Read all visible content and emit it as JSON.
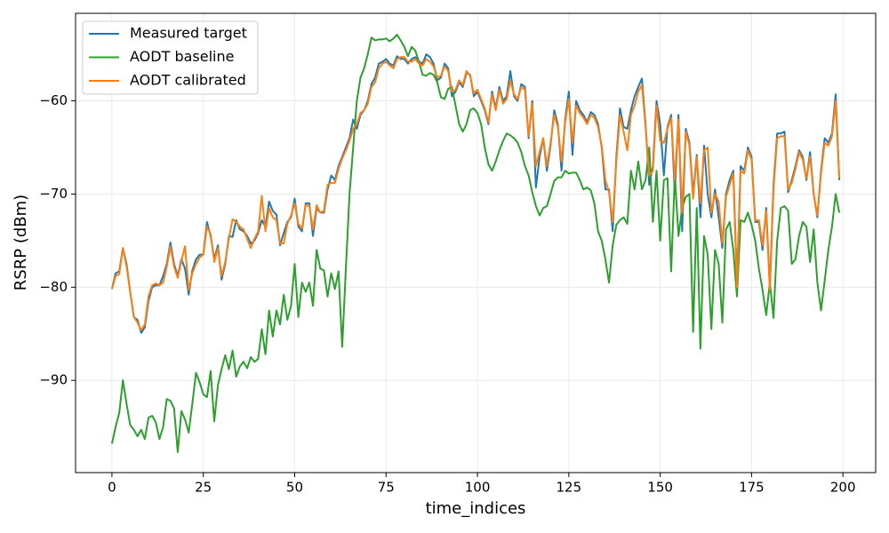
{
  "chart_data": {
    "type": "line",
    "xlabel": "time_indices",
    "ylabel": "RSRP (dBm)",
    "x": [
      0,
      1,
      2,
      3,
      4,
      5,
      6,
      7,
      8,
      9,
      10,
      11,
      12,
      13,
      14,
      15,
      16,
      17,
      18,
      19,
      20,
      21,
      22,
      23,
      24,
      25,
      26,
      27,
      28,
      29,
      30,
      31,
      32,
      33,
      34,
      35,
      36,
      37,
      38,
      39,
      40,
      41,
      42,
      43,
      44,
      45,
      46,
      47,
      48,
      49,
      50,
      51,
      52,
      53,
      54,
      55,
      56,
      57,
      58,
      59,
      60,
      61,
      62,
      63,
      64,
      65,
      66,
      67,
      68,
      69,
      70,
      71,
      72,
      73,
      74,
      75,
      76,
      77,
      78,
      79,
      80,
      81,
      82,
      83,
      84,
      85,
      86,
      87,
      88,
      89,
      90,
      91,
      92,
      93,
      94,
      95,
      96,
      97,
      98,
      99,
      100,
      101,
      102,
      103,
      104,
      105,
      106,
      107,
      108,
      109,
      110,
      111,
      112,
      113,
      114,
      115,
      116,
      117,
      118,
      119,
      120,
      121,
      122,
      123,
      124,
      125,
      126,
      127,
      128,
      129,
      130,
      131,
      132,
      133,
      134,
      135,
      136,
      137,
      138,
      139,
      140,
      141,
      142,
      143,
      144,
      145,
      146,
      147,
      148,
      149,
      150,
      151,
      152,
      153,
      154,
      155,
      156,
      157,
      158,
      159,
      160,
      161,
      162,
      163,
      164,
      165,
      166,
      167,
      168,
      169,
      170,
      171,
      172,
      173,
      174,
      175,
      176,
      177,
      178,
      179,
      180,
      181,
      182,
      183,
      184,
      185,
      186,
      187,
      188,
      189,
      190,
      191,
      192,
      193,
      194,
      195,
      196,
      197,
      198,
      199
    ],
    "series": [
      {
        "name": "Measured target",
        "color": "#1f77b4",
        "values": [
          -80.2,
          -78.5,
          -78.3,
          -75.8,
          -77.5,
          -80.5,
          -83.2,
          -83.5,
          -84.9,
          -84.3,
          -81.5,
          -80,
          -79.8,
          -79.8,
          -78.8,
          -77.5,
          -75.2,
          -77.5,
          -78.8,
          -77,
          -78,
          -80.8,
          -78.2,
          -77,
          -76.5,
          -76.5,
          -73,
          -74.5,
          -77,
          -75.5,
          -79.2,
          -77.5,
          -74.5,
          -74.6,
          -72.8,
          -73.8,
          -74,
          -74.5,
          -75.3,
          -75,
          -74.2,
          -72.8,
          -73.5,
          -70.8,
          -71.8,
          -72.2,
          -75.5,
          -74.2,
          -73,
          -72.5,
          -70.5,
          -73.5,
          -74,
          -71,
          -71,
          -74.5,
          -71.5,
          -72,
          -72,
          -69.5,
          -68,
          -68.5,
          -67,
          -66,
          -65,
          -64,
          -62,
          -63,
          -61.5,
          -61,
          -60,
          -58.2,
          -57.5,
          -56,
          -55.8,
          -55.5,
          -56,
          -56.2,
          -55.2,
          -55.5,
          -55.5,
          -56,
          -55.5,
          -55.3,
          -55.8,
          -56,
          -55,
          -55.3,
          -56,
          -57.8,
          -57.5,
          -56,
          -56.5,
          -59.5,
          -59,
          -58,
          -58.5,
          -57,
          -57.2,
          -59.5,
          -59,
          -60,
          -61,
          -62.5,
          -59,
          -60.8,
          -58.5,
          -60,
          -59.5,
          -56.8,
          -59.5,
          -60,
          -58.2,
          -58.5,
          -64,
          -60,
          -69.3,
          -66,
          -64,
          -67.5,
          -64.8,
          -61,
          -62.5,
          -67.5,
          -62,
          -59,
          -65.8,
          -60,
          -61,
          -61.5,
          -62.3,
          -61.2,
          -61.5,
          -62.5,
          -65,
          -69.5,
          -69.5,
          -74,
          -66,
          -60.8,
          -62.8,
          -63,
          -61,
          -59.5,
          -58.5,
          -57.6,
          -62.5,
          -69,
          -67,
          -60,
          -62.5,
          -68,
          -62.8,
          -61.5,
          -70,
          -61.5,
          -74,
          -63,
          -64.5,
          -70,
          -65.8,
          -72.5,
          -64.8,
          -70,
          -72.5,
          -69.5,
          -72.5,
          -75.8,
          -70,
          -68.5,
          -67.5,
          -79.5,
          -67,
          -67.5,
          -65,
          -66,
          -73,
          -73,
          -76,
          -71.5,
          -80,
          -69,
          -63.5,
          -63.5,
          -63.3,
          -69.8,
          -68.5,
          -67,
          -65.3,
          -66,
          -68.5,
          -65.5,
          -70,
          -72.5,
          -67.5,
          -64,
          -64.5,
          -63.5,
          -59.3,
          -68.5
        ]
      },
      {
        "name": "AODT baseline",
        "color": "#2ca02c",
        "values": [
          -96.8,
          -95,
          -93.5,
          -90,
          -92.5,
          -94.8,
          -95.3,
          -96,
          -95.3,
          -96.3,
          -94,
          -93.8,
          -94.5,
          -96.3,
          -95,
          -92,
          -92.2,
          -93,
          -97.7,
          -93.3,
          -94.2,
          -95.6,
          -92.5,
          -89.2,
          -90.2,
          -91.5,
          -91.8,
          -89,
          -94.4,
          -90.5,
          -88.8,
          -87.3,
          -88.8,
          -86.8,
          -89.6,
          -88.5,
          -88,
          -88.7,
          -87.5,
          -88,
          -87.7,
          -84.5,
          -87.2,
          -82.5,
          -85.3,
          -82.5,
          -84,
          -80.8,
          -83.5,
          -82,
          -77.5,
          -83.2,
          -79.5,
          -80.5,
          -79.5,
          -82,
          -76,
          -78,
          -78.2,
          -81,
          -78.5,
          -80.2,
          -78.3,
          -86.4,
          -78,
          -70,
          -65,
          -60,
          -57.5,
          -56.5,
          -55,
          -53.2,
          -53.5,
          -53.4,
          -53.4,
          -53.3,
          -53.6,
          -53.3,
          -52.9,
          -53.5,
          -54.2,
          -55.2,
          -54.2,
          -54.6,
          -55.8,
          -57.2,
          -57.3,
          -57,
          -57.2,
          -58,
          -59.6,
          -59.8,
          -58.7,
          -58.5,
          -60.5,
          -62.5,
          -63.3,
          -62.5,
          -61,
          -60.8,
          -61.3,
          -62.5,
          -65,
          -66.8,
          -67.5,
          -66.5,
          -65.3,
          -64.3,
          -63.5,
          -63.7,
          -64,
          -64.5,
          -65.5,
          -67,
          -68,
          -69.8,
          -71.3,
          -72.3,
          -71.5,
          -71.3,
          -70,
          -68.6,
          -68.2,
          -68.2,
          -67.5,
          -67.8,
          -67.7,
          -67.7,
          -68.5,
          -69.5,
          -69.3,
          -69.6,
          -71,
          -74,
          -75,
          -77,
          -79.5,
          -75.5,
          -73.3,
          -72.8,
          -72.5,
          -73.2,
          -67.5,
          -69.5,
          -66.5,
          -69.5,
          -68.5,
          -65,
          -73,
          -67.5,
          -75,
          -68.5,
          -68.3,
          -78.3,
          -68,
          -74.5,
          -71.5,
          -70.3,
          -70,
          -84.8,
          -71.5,
          -86.6,
          -74.5,
          -76.5,
          -84.5,
          -76,
          -77.5,
          -83.8,
          -73.8,
          -73,
          -76,
          -81,
          -72.8,
          -73,
          -72,
          -73.3,
          -75,
          -78,
          -80.3,
          -83,
          -79.5,
          -83.3,
          -75,
          -71.5,
          -71.3,
          -71.8,
          -77.5,
          -77,
          -74.5,
          -73,
          -73.5,
          -77.3,
          -73.8,
          -79.5,
          -82.5,
          -79.3,
          -76,
          -73.5,
          -70,
          -72
        ]
      },
      {
        "name": "AODT calibrated",
        "color": "#ff7f0e",
        "values": [
          -80.2,
          -78.8,
          -78.6,
          -75.8,
          -77.8,
          -80.5,
          -83.2,
          -83.8,
          -84.6,
          -84,
          -81,
          -79.8,
          -79.6,
          -79.8,
          -79.5,
          -77.8,
          -75.6,
          -77.8,
          -79,
          -77.2,
          -75.6,
          -80.3,
          -78.5,
          -77.5,
          -76.8,
          -76.5,
          -73.5,
          -74.3,
          -77.3,
          -75.8,
          -78.8,
          -77.3,
          -74.8,
          -72.7,
          -73,
          -73.5,
          -73.8,
          -74.8,
          -75.8,
          -74.8,
          -74,
          -70.2,
          -74,
          -71.5,
          -72.5,
          -72.8,
          -75.3,
          -75.3,
          -73.2,
          -72.3,
          -71,
          -73.2,
          -73.7,
          -71.2,
          -71.3,
          -73.8,
          -71.2,
          -72,
          -71.8,
          -69,
          -68.8,
          -68.8,
          -67.3,
          -66.2,
          -65.3,
          -64.3,
          -63,
          -62.5,
          -61.3,
          -61,
          -60.3,
          -58.5,
          -58,
          -56.5,
          -56,
          -55.8,
          -56.2,
          -56.5,
          -55.5,
          -55.3,
          -55.3,
          -55.8,
          -55.8,
          -55.5,
          -56,
          -56.2,
          -55.5,
          -55.8,
          -56.3,
          -57.5,
          -57.3,
          -56.3,
          -56.8,
          -59,
          -58.8,
          -57.8,
          -58.3,
          -56.8,
          -57.3,
          -59.2,
          -58.8,
          -59.8,
          -60.8,
          -62.3,
          -59.3,
          -61,
          -58.8,
          -60.3,
          -59.8,
          -57.8,
          -59.3,
          -59.8,
          -58.5,
          -58.8,
          -63.8,
          -60.3,
          -67,
          -65.5,
          -64,
          -67,
          -64.5,
          -61.5,
          -62.8,
          -66.5,
          -62.3,
          -59.8,
          -64.5,
          -60.5,
          -61.3,
          -61.8,
          -62.5,
          -61.5,
          -61.8,
          -62.8,
          -64.8,
          -68.5,
          -69.8,
          -73,
          -66.5,
          -61.5,
          -63.3,
          -65.3,
          -61.5,
          -60.5,
          -59,
          -58.3,
          -62.8,
          -68,
          -67.5,
          -60.5,
          -64.3,
          -64.5,
          -63,
          -61.8,
          -68.5,
          -62,
          -72,
          -63.3,
          -64.8,
          -70.5,
          -66,
          -71,
          -65.3,
          -65,
          -72,
          -70,
          -70.8,
          -75.3,
          -70.3,
          -69,
          -67.8,
          -80,
          -67.5,
          -67.8,
          -65.3,
          -66.3,
          -72.8,
          -72.8,
          -75.5,
          -71.8,
          -80.3,
          -69.5,
          -64,
          -63.8,
          -63.8,
          -69.5,
          -68.8,
          -67.3,
          -65.5,
          -66.3,
          -68.3,
          -66,
          -70,
          -72.3,
          -67.8,
          -64.5,
          -64.8,
          -63.8,
          -60,
          -68.3
        ]
      }
    ],
    "xlim": [
      -9.95,
      208.95
    ],
    "ylim": [
      -99.9,
      -50.6
    ],
    "xticks": [
      0,
      25,
      50,
      75,
      100,
      125,
      150,
      175,
      200
    ],
    "yticks": [
      {
        "value": -90,
        "label": "−90"
      },
      {
        "value": -80,
        "label": "−80"
      },
      {
        "value": -70,
        "label": "−70"
      },
      {
        "value": -60,
        "label": "−60"
      }
    ],
    "grid": true,
    "legend": "upper left"
  }
}
